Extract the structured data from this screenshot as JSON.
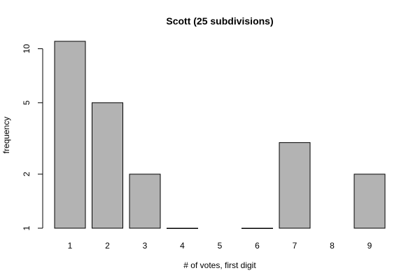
{
  "chart_data": {
    "type": "bar",
    "title": "Scott (25 subdivisions)",
    "xlabel": "# of votes, first digit",
    "ylabel": "frequency",
    "categories": [
      "1",
      "2",
      "3",
      "4",
      "5",
      "6",
      "7",
      "8",
      "9"
    ],
    "values": [
      11,
      5,
      2,
      1,
      0,
      1,
      3,
      0,
      2
    ],
    "y_scale": "log",
    "bar_base": 1,
    "yticks": [
      1,
      2,
      5,
      10
    ],
    "ylim": [
      1,
      11
    ],
    "grid": false,
    "colors": {
      "bar_fill": "#b3b3b3",
      "bar_stroke": "#000000"
    }
  }
}
